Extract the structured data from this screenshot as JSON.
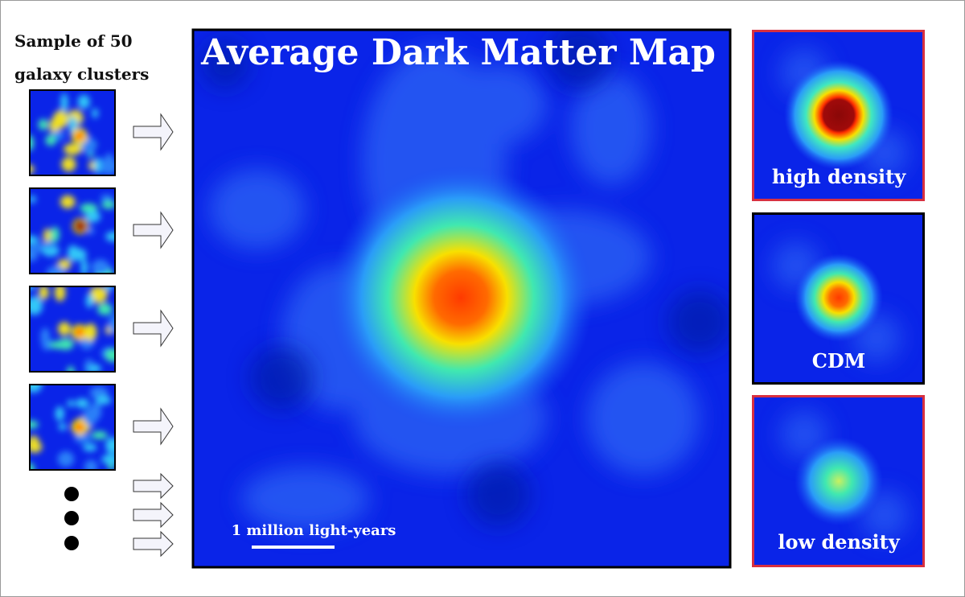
{
  "sidebar": {
    "caption_lines": [
      "Sample of 50",
      "galaxy clusters"
    ]
  },
  "main_map": {
    "title": "Average Dark Matter Map",
    "scale_label": "1 million light-years"
  },
  "panels": [
    {
      "label": "high density"
    },
    {
      "label": "CDM"
    },
    {
      "label": "low density"
    }
  ]
}
